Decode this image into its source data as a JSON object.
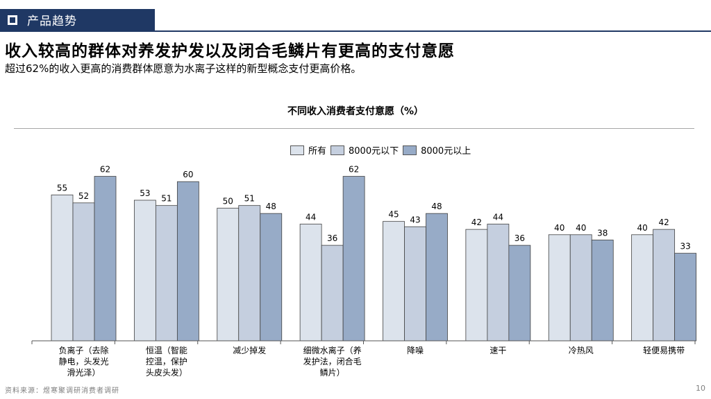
{
  "header": {
    "section_label": "产品趋势"
  },
  "headline": "收入较高的群体对养发护发以及闭合毛鳞片有更高的支付意愿",
  "subline": "超过62%的收入更高的消费群体愿意为水离子这样的新型概念支付更高价格。",
  "footer": {
    "source": "资料来源：煜寒聚调研消费者调研",
    "page": "10"
  },
  "colors": {
    "header_bg": "#1f3864",
    "series": [
      "#dce3ec",
      "#c5cfdf",
      "#97abc7"
    ],
    "bar_stroke": "#404040"
  },
  "chart_data": {
    "type": "bar",
    "title": "不同收入消费者支付意愿（%）",
    "legend_position": "top",
    "ylim": [
      0,
      70
    ],
    "grid": false,
    "categories": [
      [
        "负离子（去除",
        "静电，头发光",
        "滑光泽）"
      ],
      [
        "恒温（智能",
        "控温，保护",
        "头皮头发）"
      ],
      [
        "减少掉发"
      ],
      [
        "细微水离子（养",
        "发护法，闭合毛",
        "鳞片）"
      ],
      [
        "降噪"
      ],
      [
        "速干"
      ],
      [
        "冷热风"
      ],
      [
        "轻便易携带"
      ]
    ],
    "series": [
      {
        "name": "所有",
        "values": [
          55,
          53,
          50,
          44,
          45,
          42,
          40,
          40
        ]
      },
      {
        "name": "8000元以下",
        "values": [
          52,
          51,
          51,
          36,
          43,
          44,
          40,
          42
        ]
      },
      {
        "name": "8000元以上",
        "values": [
          62,
          60,
          48,
          62,
          48,
          36,
          38,
          33
        ]
      }
    ]
  }
}
